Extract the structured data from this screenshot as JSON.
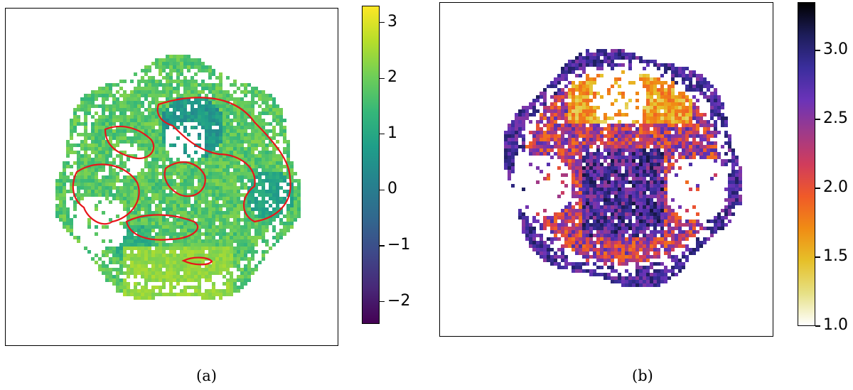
{
  "panels": [
    {
      "caption": "(a)",
      "colormap": "viridis",
      "colorbar": {
        "min": -2.4,
        "max": 3.3,
        "ticks": [
          "3",
          "2",
          "1",
          "0",
          "−1",
          "−2"
        ],
        "tick_values": [
          3,
          2,
          1,
          0,
          -1,
          -2
        ]
      },
      "contour_color": "#e8141a"
    },
    {
      "caption": "(b)",
      "colormap": "CMRmap_r",
      "colorbar": {
        "min": 1.0,
        "max": 3.35,
        "ticks": [
          "3.0",
          "2.5",
          "2.0",
          "1.5",
          "1.0"
        ],
        "tick_values": [
          3.0,
          2.5,
          2.0,
          1.5,
          1.0
        ]
      }
    }
  ],
  "chart_data": [
    {
      "type": "heatmap",
      "title": "",
      "caption": "(a)",
      "colorbar_range": [
        -2.4,
        3.3
      ],
      "colorbar_ticks": [
        -2,
        -1,
        0,
        1,
        2,
        3
      ],
      "overlay": "red contours",
      "typical_values": {
        "overall": 1.8,
        "low_regions": -0.5
      }
    },
    {
      "type": "heatmap",
      "title": "",
      "caption": "(b)",
      "colorbar_range": [
        1.0,
        3.35
      ],
      "colorbar_ticks": [
        1.0,
        1.5,
        2.0,
        2.5,
        3.0
      ],
      "typical_values": {
        "outer_rim": 2.6,
        "upper_cap": 1.4
      }
    }
  ]
}
